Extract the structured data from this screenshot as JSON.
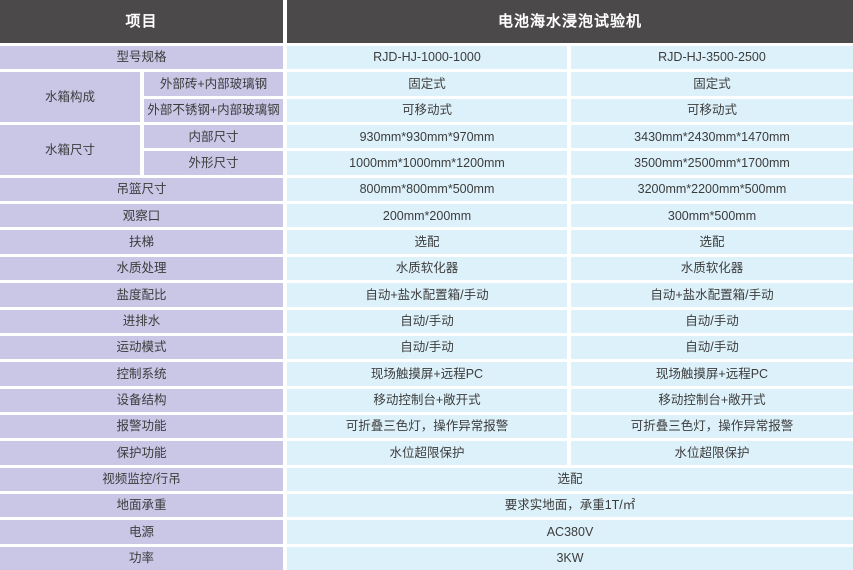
{
  "header": {
    "project": "项目",
    "machine": "电池海水浸泡试验机"
  },
  "rows": [
    {
      "label": "型号规格",
      "v1": "RJD-HJ-1000-1000",
      "v2": "RJD-HJ-3500-2500"
    },
    {
      "group": "水箱构成",
      "sub": "外部砖+内部玻璃钢",
      "v1": "固定式",
      "v2": "固定式"
    },
    {
      "sub": "外部不锈钢+内部玻璃钢",
      "v1": "可移动式",
      "v2": "可移动式"
    },
    {
      "group": "水箱尺寸",
      "sub": "内部尺寸",
      "v1": "930mm*930mm*970mm",
      "v2": "3430mm*2430mm*1470mm"
    },
    {
      "sub": "外形尺寸",
      "v1": "1000mm*1000mm*1200mm",
      "v2": "3500mm*2500mm*1700mm"
    },
    {
      "label": "吊篮尺寸",
      "v1": "800mm*800mm*500mm",
      "v2": "3200mm*2200mm*500mm"
    },
    {
      "label": "观察口",
      "v1": "200mm*200mm",
      "v2": "300mm*500mm"
    },
    {
      "label": "扶梯",
      "v1": "选配",
      "v2": "选配"
    },
    {
      "label": "水质处理",
      "v1": "水质软化器",
      "v2": "水质软化器"
    },
    {
      "label": "盐度配比",
      "v1": "自动+盐水配置箱/手动",
      "v2": "自动+盐水配置箱/手动"
    },
    {
      "label": "进排水",
      "v1": "自动/手动",
      "v2": "自动/手动"
    },
    {
      "label": "运动模式",
      "v1": "自动/手动",
      "v2": "自动/手动"
    },
    {
      "label": "控制系统",
      "v1": "现场触摸屏+远程PC",
      "v2": "现场触摸屏+远程PC"
    },
    {
      "label": "设备结构",
      "v1": "移动控制台+敞开式",
      "v2": "移动控制台+敞开式"
    },
    {
      "label": "报警功能",
      "v1": "可折叠三色灯，操作异常报警",
      "v2": "可折叠三色灯，操作异常报警"
    },
    {
      "label": "保护功能",
      "v1": "水位超限保护",
      "v2": "水位超限保护"
    },
    {
      "label": "视频监控/行吊",
      "merged": "选配"
    },
    {
      "label": "地面承重",
      "merged": "要求实地面，承重1T/㎡"
    },
    {
      "label": "电源",
      "merged": "AC380V"
    },
    {
      "label": "功率",
      "merged": "3KW"
    }
  ],
  "colors": {
    "header_bg": "#4c494b",
    "header_text": "#ffffff",
    "label_bg": "#c9c6e6",
    "value_bg": "#ddf1fa",
    "cell_text": "#3c3c3c",
    "gap": "#ffffff"
  }
}
